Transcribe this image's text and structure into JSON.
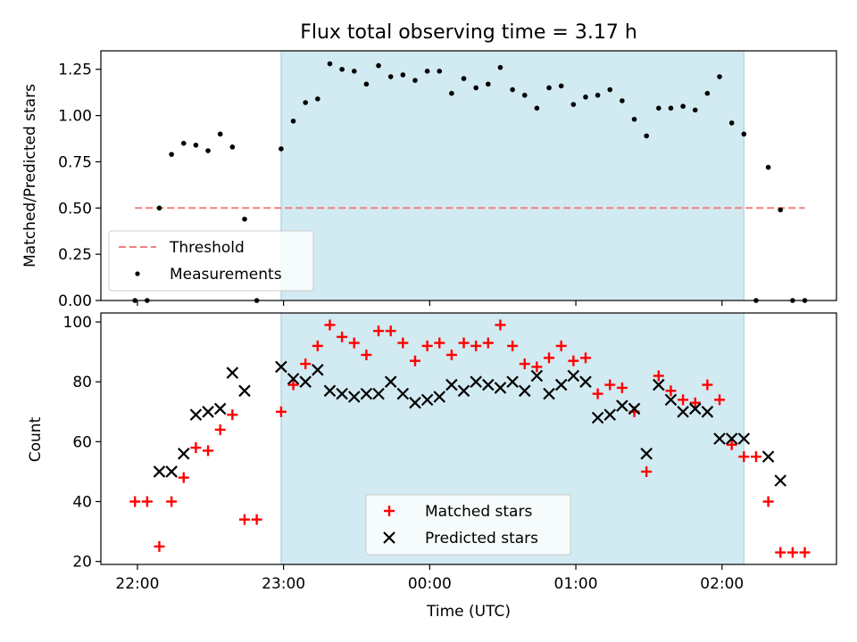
{
  "chart_data": [
    {
      "type": "scatter",
      "title": "Flux total observing time = 3.17 h",
      "xlabel": "",
      "ylabel": "Matched/Predicted stars",
      "x_unit": "minutes since 22:00 UTC",
      "xlim": [
        -15,
        287
      ],
      "ylim": [
        0,
        1.35
      ],
      "yticks": [
        0.0,
        0.25,
        0.5,
        0.75,
        1.0,
        1.25
      ],
      "ytick_labels": [
        "0.00",
        "0.25",
        "0.50",
        "0.75",
        "1.00",
        "1.25"
      ],
      "shaded_region": {
        "x_start": 59,
        "x_end": 249,
        "color": "#add8e6"
      },
      "threshold": {
        "name": "Threshold",
        "value": 0.5,
        "x_start": -1,
        "x_end": 274,
        "color": "#f08080"
      },
      "series": [
        {
          "name": "Measurements",
          "marker": "dot",
          "color": "#000000",
          "x": [
            -1,
            4,
            9,
            14,
            19,
            24,
            29,
            34,
            39,
            44,
            49,
            59,
            64,
            69,
            74,
            79,
            84,
            89,
            94,
            99,
            104,
            109,
            114,
            119,
            124,
            129,
            134,
            139,
            144,
            149,
            154,
            159,
            164,
            169,
            174,
            179,
            184,
            189,
            194,
            199,
            204,
            209,
            214,
            219,
            224,
            229,
            234,
            239,
            244,
            249,
            254,
            259,
            264,
            269,
            274
          ],
          "y": [
            0.0,
            0.0,
            0.5,
            0.79,
            0.85,
            0.84,
            0.81,
            0.9,
            0.83,
            0.44,
            0.0,
            0.82,
            0.97,
            1.07,
            1.09,
            1.28,
            1.25,
            1.24,
            1.17,
            1.27,
            1.21,
            1.22,
            1.19,
            1.24,
            1.24,
            1.12,
            1.2,
            1.15,
            1.17,
            1.26,
            1.14,
            1.11,
            1.04,
            1.15,
            1.16,
            1.06,
            1.1,
            1.11,
            1.14,
            1.08,
            0.98,
            0.89,
            1.04,
            1.04,
            1.05,
            1.03,
            1.12,
            1.21,
            0.96,
            0.9,
            0.0,
            0.72,
            0.49,
            0.0,
            0.0
          ]
        }
      ],
      "legend": {
        "placement": "lower-left",
        "entries": [
          "Threshold",
          "Measurements"
        ]
      }
    },
    {
      "type": "scatter",
      "title": "",
      "xlabel": "Time (UTC)",
      "ylabel": "Count",
      "x_unit": "minutes since 22:00 UTC",
      "xlim": [
        -15,
        287
      ],
      "ylim": [
        19,
        103
      ],
      "xticks": [
        0,
        60,
        120,
        180,
        240
      ],
      "xtick_labels": [
        "22:00",
        "23:00",
        "00:00",
        "01:00",
        "02:00"
      ],
      "yticks": [
        20,
        40,
        60,
        80,
        100
      ],
      "ytick_labels": [
        "20",
        "40",
        "60",
        "80",
        "100"
      ],
      "shaded_region": {
        "x_start": 59,
        "x_end": 249,
        "color": "#add8e6"
      },
      "series": [
        {
          "name": "Matched stars",
          "marker": "plus",
          "color": "#ff0000",
          "x": [
            -1,
            4,
            9,
            14,
            19,
            24,
            29,
            34,
            39,
            44,
            49,
            59,
            64,
            69,
            74,
            79,
            84,
            89,
            94,
            99,
            104,
            109,
            114,
            119,
            124,
            129,
            134,
            139,
            144,
            149,
            154,
            159,
            164,
            169,
            174,
            179,
            184,
            189,
            194,
            199,
            204,
            209,
            214,
            219,
            224,
            229,
            234,
            239,
            244,
            249,
            254,
            259,
            264,
            269,
            274
          ],
          "y": [
            40,
            40,
            25,
            40,
            48,
            58,
            57,
            64,
            69,
            34,
            34,
            70,
            79,
            86,
            92,
            99,
            95,
            93,
            89,
            97,
            97,
            93,
            87,
            92,
            93,
            89,
            93,
            92,
            93,
            99,
            92,
            86,
            85,
            88,
            92,
            87,
            88,
            76,
            79,
            78,
            70,
            50,
            82,
            77,
            74,
            73,
            79,
            74,
            59,
            55,
            55,
            40,
            23,
            23,
            23
          ]
        },
        {
          "name": "Predicted stars",
          "marker": "x",
          "color": "#000000",
          "x": [
            9,
            14,
            19,
            24,
            29,
            34,
            39,
            44,
            59,
            64,
            69,
            74,
            79,
            84,
            89,
            94,
            99,
            104,
            109,
            114,
            119,
            124,
            129,
            134,
            139,
            144,
            149,
            154,
            159,
            164,
            169,
            174,
            179,
            184,
            189,
            194,
            199,
            204,
            209,
            214,
            219,
            224,
            229,
            234,
            239,
            244,
            249,
            259,
            264
          ],
          "y": [
            50,
            50,
            56,
            69,
            70,
            71,
            83,
            77,
            85,
            81,
            80,
            84,
            77,
            76,
            75,
            76,
            76,
            80,
            76,
            73,
            74,
            75,
            79,
            77,
            80,
            79,
            78,
            80,
            77,
            82,
            76,
            79,
            82,
            80,
            68,
            69,
            72,
            71,
            56,
            79,
            74,
            70,
            71,
            70,
            61,
            61,
            61,
            55,
            47
          ]
        }
      ],
      "legend": {
        "placement": "lower-center",
        "entries": [
          "Matched stars",
          "Predicted stars"
        ]
      }
    }
  ]
}
